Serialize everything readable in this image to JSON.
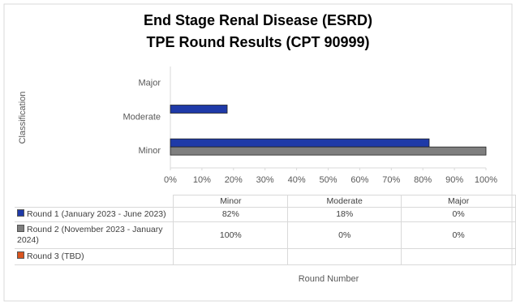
{
  "chart_data": {
    "type": "bar",
    "orientation": "horizontal",
    "title": [
      "End Stage Renal Disease (ESRD)",
      "TPE Round Results (CPT 90999)"
    ],
    "y_label": "Classification",
    "x_label": "Round Number",
    "categories": [
      "Minor",
      "Moderate",
      "Major"
    ],
    "series": [
      {
        "name": "Round 1 (January 2023 - June 2023)",
        "color": "#1f3aa8",
        "values": [
          82,
          18,
          0
        ],
        "value_labels": [
          "82%",
          "18%",
          "0%"
        ]
      },
      {
        "name": "Round 2 (November 2023 - January 2024)",
        "color": "#7f7f7f",
        "values": [
          100,
          0,
          0
        ],
        "value_labels": [
          "100%",
          "0%",
          "0%"
        ]
      },
      {
        "name": "Round 3 (TBD)",
        "color": "#d9541e",
        "values": [
          null,
          null,
          null
        ]
      }
    ],
    "xlim": [
      0,
      100
    ],
    "xticks": [
      {
        "value": 0,
        "label": "0%"
      },
      {
        "value": 10,
        "label": "10%"
      },
      {
        "value": 20,
        "label": "20%"
      },
      {
        "value": 30,
        "label": "30%"
      },
      {
        "value": 40,
        "label": "40%"
      },
      {
        "value": 50,
        "label": "50%"
      },
      {
        "value": 60,
        "label": "60%"
      },
      {
        "value": 70,
        "label": "70%"
      },
      {
        "value": 80,
        "label": "80%"
      },
      {
        "value": 90,
        "label": "90%"
      },
      {
        "value": 100,
        "label": "100%"
      }
    ],
    "grid": false
  }
}
